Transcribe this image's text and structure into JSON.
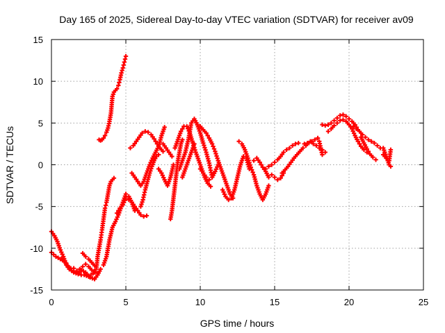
{
  "chart_data": {
    "type": "scatter",
    "title": "Day 165 of 2025, Sidereal Day-to-day VTEC variation (SDTVAR) for receiver av09",
    "xlabel": "GPS time / hours",
    "ylabel": "SDTVAR / TECUs",
    "xlim": [
      0,
      25
    ],
    "ylim": [
      -15,
      15
    ],
    "xticks": [
      0,
      5,
      10,
      15,
      20,
      25
    ],
    "yticks": [
      -15,
      -10,
      -5,
      0,
      5,
      10,
      15
    ],
    "xtick_labels": [
      "0",
      "5",
      "10",
      "15",
      "20",
      "25"
    ],
    "ytick_labels": [
      "-15",
      "-10",
      "-5",
      "0",
      "5",
      "10",
      "15"
    ],
    "grid": true,
    "marker": "plus",
    "color": "#ff0000",
    "series": [
      {
        "name": "av09",
        "x": [
          0.0,
          0.2,
          0.4,
          0.6,
          0.8,
          1.0,
          1.2,
          1.5,
          1.8,
          2.0,
          2.2,
          2.5,
          2.8,
          3.0,
          3.05,
          3.1,
          3.2,
          3.3,
          3.4,
          3.5,
          3.6,
          3.7,
          3.8,
          3.9,
          4.0,
          4.1,
          4.2
        ],
        "y": [
          -8.0,
          -8.5,
          -9.2,
          -10.2,
          -11.0,
          -12.0,
          -12.5,
          -12.8,
          -13.0,
          -13.2,
          -13.2,
          -13.4,
          -13.0,
          -12.5,
          -12.0,
          -11.0,
          -10.0,
          -9.0,
          -7.8,
          -6.5,
          -5.2,
          -4.5,
          -3.5,
          -2.5,
          -2.0,
          -1.8,
          -1.6
        ]
      },
      {
        "name": "av09",
        "x": [
          0.0,
          0.3,
          0.6,
          0.9,
          1.2,
          1.5,
          1.8,
          2.0,
          2.3,
          2.6,
          2.9,
          3.1,
          3.3
        ],
        "y": [
          -10.5,
          -11.0,
          -11.3,
          -11.6,
          -12.5,
          -12.9,
          -13.1,
          -12.6,
          -12.9,
          -13.5,
          -13.7,
          -13.2,
          -12.5
        ]
      },
      {
        "name": "av09",
        "x": [
          0.7,
          0.9,
          1.1,
          1.3,
          1.5,
          1.7,
          1.9,
          2.1,
          2.3,
          2.5,
          2.7,
          2.9,
          3.1
        ],
        "y": [
          -11.3,
          -11.5,
          -12.1,
          -12.4,
          -12.4,
          -12.7,
          -12.5,
          -12.2,
          -11.9,
          -12.2,
          -12.6,
          -12.9,
          -13.0
        ]
      },
      {
        "name": "av09",
        "x": [
          2.1,
          2.3,
          2.5,
          2.7,
          2.9
        ],
        "y": [
          -10.6,
          -11.0,
          -11.3,
          -11.7,
          -12.1
        ]
      },
      {
        "name": "av09",
        "x": [
          3.2,
          3.3,
          3.4,
          3.5,
          3.6,
          3.7,
          3.8,
          3.9,
          4.0,
          4.05,
          4.1,
          4.2,
          4.3,
          4.4,
          4.5,
          4.6,
          4.7,
          4.8,
          4.9,
          5.0
        ],
        "y": [
          3.0,
          2.9,
          3.0,
          3.2,
          3.5,
          3.9,
          4.4,
          5.2,
          6.2,
          7.2,
          8.2,
          8.7,
          8.9,
          9.1,
          9.5,
          10.2,
          11.0,
          11.6,
          12.3,
          13.0
        ]
      },
      {
        "name": "av09",
        "x": [
          3.5,
          3.7,
          3.9,
          4.1,
          4.3,
          4.5,
          4.7,
          4.9,
          5.0,
          5.2,
          5.4,
          5.6
        ],
        "y": [
          -12.0,
          -11.0,
          -9.0,
          -7.5,
          -6.8,
          -6.0,
          -5.0,
          -4.0,
          -3.5,
          -3.8,
          -4.5,
          -5.5
        ]
      },
      {
        "name": "av09",
        "x": [
          4.4,
          4.6,
          4.8,
          5.0,
          5.2,
          5.4,
          5.6,
          5.8,
          6.0,
          6.2,
          6.4
        ],
        "y": [
          -5.8,
          -5.2,
          -4.8,
          -4.0,
          -4.2,
          -4.5,
          -5.0,
          -5.5,
          -6.0,
          -6.2,
          -6.1
        ]
      },
      {
        "name": "av09",
        "x": [
          5.3,
          5.5,
          5.7,
          5.9,
          6.1,
          6.3,
          6.5,
          6.7,
          6.9,
          7.1,
          7.3,
          7.5
        ],
        "y": [
          2.0,
          2.3,
          2.8,
          3.3,
          3.8,
          4.0,
          3.9,
          3.6,
          3.1,
          2.5,
          2.0,
          1.6
        ]
      },
      {
        "name": "av09",
        "x": [
          5.4,
          5.6,
          5.8,
          6.0,
          6.2,
          6.4,
          6.6,
          6.8,
          7.0,
          7.2,
          7.4,
          7.6
        ],
        "y": [
          -1.0,
          -1.5,
          -2.0,
          -2.5,
          -2.0,
          -1.0,
          0.0,
          0.8,
          1.5,
          2.2,
          3.5,
          4.5
        ]
      },
      {
        "name": "av09",
        "x": [
          6.0,
          6.15,
          6.3,
          6.45,
          6.6,
          6.75,
          6.9,
          7.05,
          7.2
        ],
        "y": [
          -5.0,
          -4.2,
          -3.0,
          -2.0,
          -1.0,
          -0.2,
          0.5,
          1.0,
          1.2
        ]
      },
      {
        "name": "av09",
        "x": [
          7.2,
          7.4,
          7.6,
          7.8,
          8.0,
          8.2
        ],
        "y": [
          -0.5,
          -1.0,
          -1.8,
          -2.5,
          -1.5,
          0.0
        ]
      },
      {
        "name": "av09",
        "x": [
          7.5,
          7.7,
          7.9,
          8.1
        ],
        "y": [
          2.5,
          2.0,
          1.5,
          1.0
        ]
      },
      {
        "name": "av09",
        "x": [
          8.0,
          8.1,
          8.2,
          8.3,
          8.4,
          8.5,
          8.6,
          8.7,
          8.8
        ],
        "y": [
          -6.5,
          -5.5,
          -4.0,
          -2.5,
          -1.0,
          0.5,
          1.5,
          2.5,
          3.0
        ]
      },
      {
        "name": "av09",
        "x": [
          8.3,
          8.5,
          8.7,
          8.9,
          9.1,
          9.3,
          9.5,
          9.7,
          9.9,
          10.1,
          10.3,
          10.5,
          10.7
        ],
        "y": [
          2.0,
          3.0,
          4.0,
          4.6,
          4.6,
          3.8,
          2.6,
          1.5,
          0.5,
          -0.5,
          -1.5,
          -2.2,
          -2.6
        ]
      },
      {
        "name": "av09",
        "x": [
          8.6,
          8.8,
          9.0,
          9.2,
          9.4,
          9.6,
          9.8,
          10.0,
          10.2,
          10.4,
          10.6,
          10.8
        ],
        "y": [
          -0.5,
          0.5,
          1.5,
          3.0,
          5.0,
          5.5,
          4.8,
          3.8,
          2.6,
          1.5,
          0.2,
          -1.5
        ]
      },
      {
        "name": "av09",
        "x": [
          8.8,
          9.0,
          9.2,
          9.4,
          9.6
        ],
        "y": [
          -1.5,
          -0.5,
          0.5,
          1.5,
          2.5
        ]
      },
      {
        "name": "av09",
        "x": [
          9.8,
          10.0,
          10.2,
          10.4,
          10.6,
          10.8,
          11.0,
          11.2,
          11.4,
          11.6,
          11.8,
          12.0,
          12.2
        ],
        "y": [
          4.8,
          4.6,
          4.2,
          3.8,
          3.2,
          2.5,
          1.6,
          0.5,
          -0.5,
          -1.5,
          -2.5,
          -3.5,
          -4.0
        ]
      },
      {
        "name": "av09",
        "x": [
          10.0,
          10.2,
          10.4,
          10.6,
          10.8,
          11.0,
          11.2
        ],
        "y": [
          -0.5,
          -1.0,
          -1.5,
          -1.8,
          -1.5,
          -0.8,
          0.0
        ]
      },
      {
        "name": "av09",
        "x": [
          11.5,
          11.7,
          11.9,
          12.1,
          12.3,
          12.5,
          12.7,
          12.9,
          13.1,
          13.3
        ],
        "y": [
          -3.0,
          -3.8,
          -4.2,
          -4.0,
          -3.0,
          -1.5,
          0.0,
          1.0,
          0.8,
          -0.5
        ]
      },
      {
        "name": "av09",
        "x": [
          12.6,
          12.8,
          13.0,
          13.2,
          13.4,
          13.6,
          13.8,
          14.0,
          14.2,
          14.4,
          14.6
        ],
        "y": [
          2.8,
          2.5,
          1.8,
          0.8,
          -0.3,
          -1.2,
          -2.5,
          -3.5,
          -4.2,
          -3.5,
          -2.5
        ]
      },
      {
        "name": "av09",
        "x": [
          13.6,
          13.8,
          14.0,
          14.2,
          14.4,
          14.6,
          14.8,
          15.0,
          15.2,
          15.4,
          15.6
        ],
        "y": [
          0.5,
          0.8,
          0.3,
          -0.3,
          -0.8,
          -1.5,
          -1.2,
          -1.5,
          -1.8,
          -1.6,
          -1.0
        ]
      },
      {
        "name": "av09",
        "x": [
          14.4,
          14.6,
          14.8,
          15.0,
          15.2,
          15.4,
          15.6,
          15.8,
          16.0,
          16.2,
          16.4,
          16.6
        ],
        "y": [
          -0.5,
          -0.2,
          0.0,
          0.3,
          0.6,
          1.0,
          1.5,
          1.8,
          2.0,
          2.3,
          2.5,
          2.6
        ]
      },
      {
        "name": "av09",
        "x": [
          15.5,
          15.7,
          15.9,
          16.1,
          16.3,
          16.5,
          16.7,
          16.9,
          17.1,
          17.3,
          17.5,
          17.7,
          17.9
        ],
        "y": [
          -1.0,
          -0.6,
          -0.2,
          0.3,
          0.8,
          1.2,
          1.6,
          2.0,
          2.3,
          2.6,
          2.8,
          3.0,
          3.2
        ]
      },
      {
        "name": "av09",
        "x": [
          17.0,
          17.2,
          17.4,
          17.6,
          17.8,
          18.0,
          18.2,
          18.4
        ],
        "y": [
          2.5,
          2.6,
          2.8,
          2.5,
          2.3,
          2.0,
          1.8,
          1.5
        ]
      },
      {
        "name": "av09",
        "x": [
          18.0,
          18.2
        ],
        "y": [
          2.8,
          1.2
        ]
      },
      {
        "name": "av09",
        "x": [
          18.2,
          18.4,
          18.6,
          18.8,
          19.0,
          19.2,
          19.4,
          19.6,
          19.8,
          20.0,
          20.2,
          20.4,
          20.6
        ],
        "y": [
          4.8,
          4.7,
          4.8,
          5.0,
          5.3,
          5.6,
          5.9,
          6.0,
          5.8,
          5.5,
          5.2,
          4.8,
          4.2
        ]
      },
      {
        "name": "av09",
        "x": [
          18.6,
          18.8,
          19.0,
          19.2,
          19.4,
          19.6,
          19.8,
          20.0,
          20.2,
          20.4,
          20.6,
          20.8,
          21.0,
          21.2
        ],
        "y": [
          4.0,
          4.3,
          4.7,
          5.0,
          5.3,
          5.4,
          5.2,
          4.8,
          4.3,
          3.5,
          2.8,
          2.2,
          1.8,
          1.5
        ]
      },
      {
        "name": "av09",
        "x": [
          20.3,
          20.5,
          20.7,
          20.9,
          21.1,
          21.3,
          21.5,
          21.7,
          21.9,
          22.1
        ],
        "y": [
          4.6,
          4.3,
          4.0,
          3.6,
          3.3,
          3.0,
          2.8,
          2.6,
          2.3,
          2.0
        ]
      },
      {
        "name": "av09",
        "x": [
          20.8,
          21.0,
          21.2,
          21.4,
          21.6,
          21.8
        ],
        "y": [
          3.3,
          2.6,
          1.9,
          1.3,
          0.9,
          0.6
        ]
      },
      {
        "name": "av09",
        "x": [
          22.3,
          22.4,
          22.5,
          22.6,
          22.7,
          22.8
        ],
        "y": [
          2.0,
          1.5,
          1.0,
          0.5,
          0.0,
          -0.2
        ]
      },
      {
        "name": "av09",
        "x": [
          22.3,
          22.5,
          22.7,
          22.8
        ],
        "y": [
          1.2,
          0.8,
          0.5,
          1.8
        ]
      }
    ]
  }
}
